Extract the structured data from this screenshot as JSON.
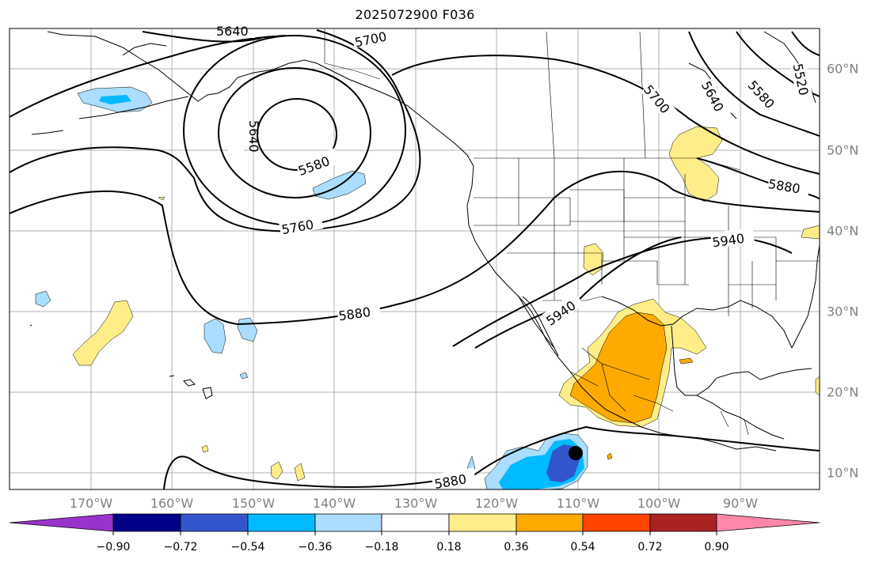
{
  "title": "2025072900 F036",
  "lon_labels": [
    "170°W",
    "160°W",
    "150°W",
    "140°W",
    "130°W",
    "120°W",
    "110°W",
    "100°W",
    "90°W"
  ],
  "lat_labels": [
    "60°N",
    "50°N",
    "40°N",
    "30°N",
    "20°N",
    "10°N"
  ],
  "contour_labels": [
    "5640",
    "5700",
    "5640",
    "5580",
    "5760",
    "5880",
    "5940",
    "5940",
    "5880",
    "5700",
    "5640",
    "5580",
    "5520",
    "5880"
  ],
  "colorbar": {
    "tick_labels": [
      "−0.90",
      "−0.72",
      "−0.54",
      "−0.36",
      "−0.18",
      "0.18",
      "0.36",
      "0.54",
      "0.72",
      "0.90"
    ],
    "colors": [
      "#9933cc",
      "#000088",
      "#3355cc",
      "#00bbff",
      "#aaddff",
      "#ffffff",
      "#ffee88",
      "#ffaa00",
      "#ff4400",
      "#aa2222",
      "#ff88aa"
    ]
  },
  "colors": {
    "land_line": "#000000",
    "grid": "#b0b0b0",
    "contour": "#000000",
    "axis_label": "#808080"
  }
}
